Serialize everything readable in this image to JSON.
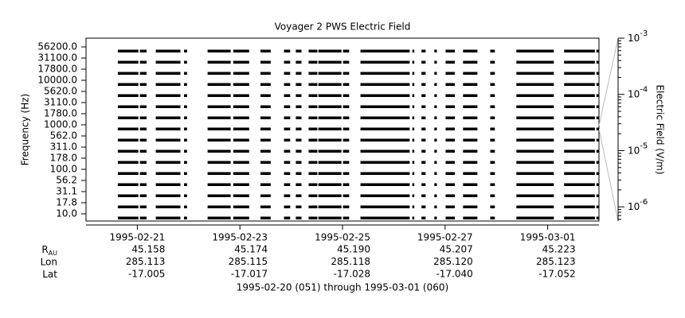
{
  "chart_data": {
    "type": "strip",
    "title": "Voyager 2 PWS Electric Field",
    "y_label": "Frequency (Hz)",
    "y2_label": "Electric Field (V/m)",
    "x_label": "1995-02-20 (051) through 1995-03-01 (060)",
    "xlim": [
      0,
      10
    ],
    "xticks": [
      {
        "value": 1,
        "label": "1995-02-21"
      },
      {
        "value": 3,
        "label": "1995-02-23"
      },
      {
        "value": 5,
        "label": "1995-02-25"
      },
      {
        "value": 7,
        "label": "1995-02-27"
      },
      {
        "value": 9,
        "label": "1995-03-01"
      }
    ],
    "channels": [
      {
        "value": 56200,
        "label": "56200.0"
      },
      {
        "value": 31100,
        "label": "31100.0"
      },
      {
        "value": 17800,
        "label": "17800.0"
      },
      {
        "value": 10000,
        "label": "10000.0"
      },
      {
        "value": 5620,
        "label": "5620.0"
      },
      {
        "value": 3110,
        "label": "3110.0"
      },
      {
        "value": 1780,
        "label": "1780.0"
      },
      {
        "value": 1000,
        "label": "1000.0"
      },
      {
        "value": 562,
        "label": "562.0"
      },
      {
        "value": 311,
        "label": "311.0"
      },
      {
        "value": 178,
        "label": "178.0"
      },
      {
        "value": 100,
        "label": "100.0"
      },
      {
        "value": 56.2,
        "label": "56.2"
      },
      {
        "value": 31.1,
        "label": "31.1"
      },
      {
        "value": 17.8,
        "label": "17.8"
      },
      {
        "value": 10,
        "label": "10.0"
      }
    ],
    "coverage": [
      [
        0.62,
        1.02
      ],
      [
        1.05,
        1.18
      ],
      [
        1.36,
        1.84
      ],
      [
        1.91,
        1.97
      ],
      [
        2.37,
        2.82
      ],
      [
        2.87,
        3.18
      ],
      [
        3.4,
        3.6
      ],
      [
        3.86,
        3.98
      ],
      [
        4.09,
        4.2
      ],
      [
        4.34,
        4.51
      ],
      [
        4.53,
        4.98
      ],
      [
        5.01,
        5.13
      ],
      [
        5.35,
        6.31
      ],
      [
        6.36,
        6.4
      ],
      [
        6.54,
        6.62
      ],
      [
        6.79,
        6.84
      ],
      [
        7.01,
        7.19
      ],
      [
        7.35,
        7.63
      ],
      [
        7.88,
        7.97
      ],
      [
        8.39,
        9.12
      ],
      [
        9.32,
        9.92
      ],
      [
        9.95,
        10
      ]
    ],
    "color": "#000000",
    "y2log": true,
    "y2lim": [
      5.6e-07,
      0.001
    ],
    "y2ticks": [
      {
        "value": 0.001,
        "label": "10",
        "exponent": "-3"
      },
      {
        "value": 0.0001,
        "label": "10",
        "exponent": "-4"
      },
      {
        "value": 1e-05,
        "label": "10",
        "exponent": "-5"
      },
      {
        "value": 1e-06,
        "label": "10",
        "exponent": "-6"
      }
    ]
  },
  "ephemeris": {
    "rows": [
      {
        "label": "R",
        "label_sub": "AU",
        "values": [
          "45.158",
          "45.174",
          "45.190",
          "45.207",
          "45.223"
        ]
      },
      {
        "label": "Lon",
        "values": [
          "285.113",
          "285.115",
          "285.118",
          "285.120",
          "285.123"
        ]
      },
      {
        "label": "Lat",
        "values": [
          "-17.005",
          "-17.017",
          "-17.028",
          "-17.040",
          "-17.052"
        ]
      }
    ]
  }
}
